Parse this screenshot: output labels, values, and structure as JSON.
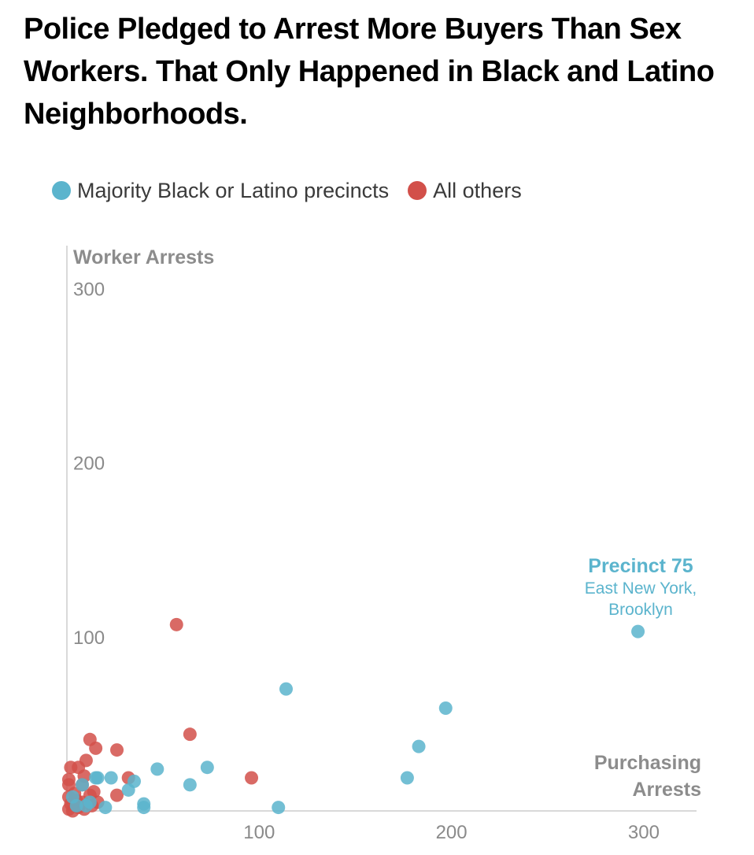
{
  "headline": "Police Pledged to Arrest More Buyers Than Sex Workers. That Only Happened in Black and Latino Neighborhoods.",
  "colors": {
    "blue": "#5BB4CD",
    "red": "#D2504A",
    "axis": "#d9d9d9",
    "tick": "#8a8a8a"
  },
  "chart_data": {
    "type": "scatter",
    "title": "Police Pledged to Arrest More Buyers Than Sex Workers. That Only Happened in Black and Latino Neighborhoods.",
    "xlabel": "Purchasing Arrests",
    "ylabel": "Worker Arrests",
    "xlim": [
      0,
      320
    ],
    "ylim": [
      0,
      310
    ],
    "xticks": [
      100,
      200,
      300
    ],
    "yticks": [
      100,
      200,
      300
    ],
    "x_tick_labels": [
      "100",
      "200",
      "300"
    ],
    "y_tick_labels": [
      "100",
      "200",
      "300"
    ],
    "legend_position": "top-left",
    "grid": false,
    "series": [
      {
        "name": "Majority Black or Latino precincts",
        "color": "#5BB4CD",
        "points": [
          {
            "x": 297,
            "y": 103
          },
          {
            "x": 114,
            "y": 70
          },
          {
            "x": 197,
            "y": 59
          },
          {
            "x": 183,
            "y": 37
          },
          {
            "x": 177,
            "y": 19
          },
          {
            "x": 73,
            "y": 25
          },
          {
            "x": 47,
            "y": 24
          },
          {
            "x": 64,
            "y": 15
          },
          {
            "x": 110,
            "y": 2
          },
          {
            "x": 40,
            "y": 4
          },
          {
            "x": 40,
            "y": 2
          },
          {
            "x": 35,
            "y": 17
          },
          {
            "x": 32,
            "y": 12
          },
          {
            "x": 23,
            "y": 19
          },
          {
            "x": 16,
            "y": 19
          },
          {
            "x": 20,
            "y": 2
          },
          {
            "x": 15,
            "y": 19
          },
          {
            "x": 12,
            "y": 5
          },
          {
            "x": 8,
            "y": 15
          },
          {
            "x": 5,
            "y": 3
          },
          {
            "x": 3,
            "y": 8
          },
          {
            "x": 10,
            "y": 3
          }
        ]
      },
      {
        "name": "All others",
        "color": "#D2504A",
        "points": [
          {
            "x": 57,
            "y": 107
          },
          {
            "x": 64,
            "y": 44
          },
          {
            "x": 96,
            "y": 19
          },
          {
            "x": 12,
            "y": 41
          },
          {
            "x": 15,
            "y": 36
          },
          {
            "x": 26,
            "y": 35
          },
          {
            "x": 10,
            "y": 29
          },
          {
            "x": 6,
            "y": 25
          },
          {
            "x": 2,
            "y": 25
          },
          {
            "x": 9,
            "y": 20
          },
          {
            "x": 1,
            "y": 18
          },
          {
            "x": 32,
            "y": 19
          },
          {
            "x": 8,
            "y": 15
          },
          {
            "x": 14,
            "y": 11
          },
          {
            "x": 1,
            "y": 15
          },
          {
            "x": 26,
            "y": 9
          },
          {
            "x": 12,
            "y": 9
          },
          {
            "x": 4,
            "y": 10
          },
          {
            "x": 1,
            "y": 8
          },
          {
            "x": 5,
            "y": 6
          },
          {
            "x": 8,
            "y": 5
          },
          {
            "x": 16,
            "y": 5
          },
          {
            "x": 13,
            "y": 3
          },
          {
            "x": 2,
            "y": 4
          },
          {
            "x": 6,
            "y": 2
          },
          {
            "x": 1,
            "y": 1
          },
          {
            "x": 3,
            "y": 0
          },
          {
            "x": 9,
            "y": 1
          }
        ]
      }
    ],
    "annotations": [
      {
        "title": "Precinct 75",
        "subtitle": [
          "East New York,",
          "Brooklyn"
        ],
        "x": 297,
        "y": 103,
        "color": "#5BB4CD"
      }
    ]
  }
}
